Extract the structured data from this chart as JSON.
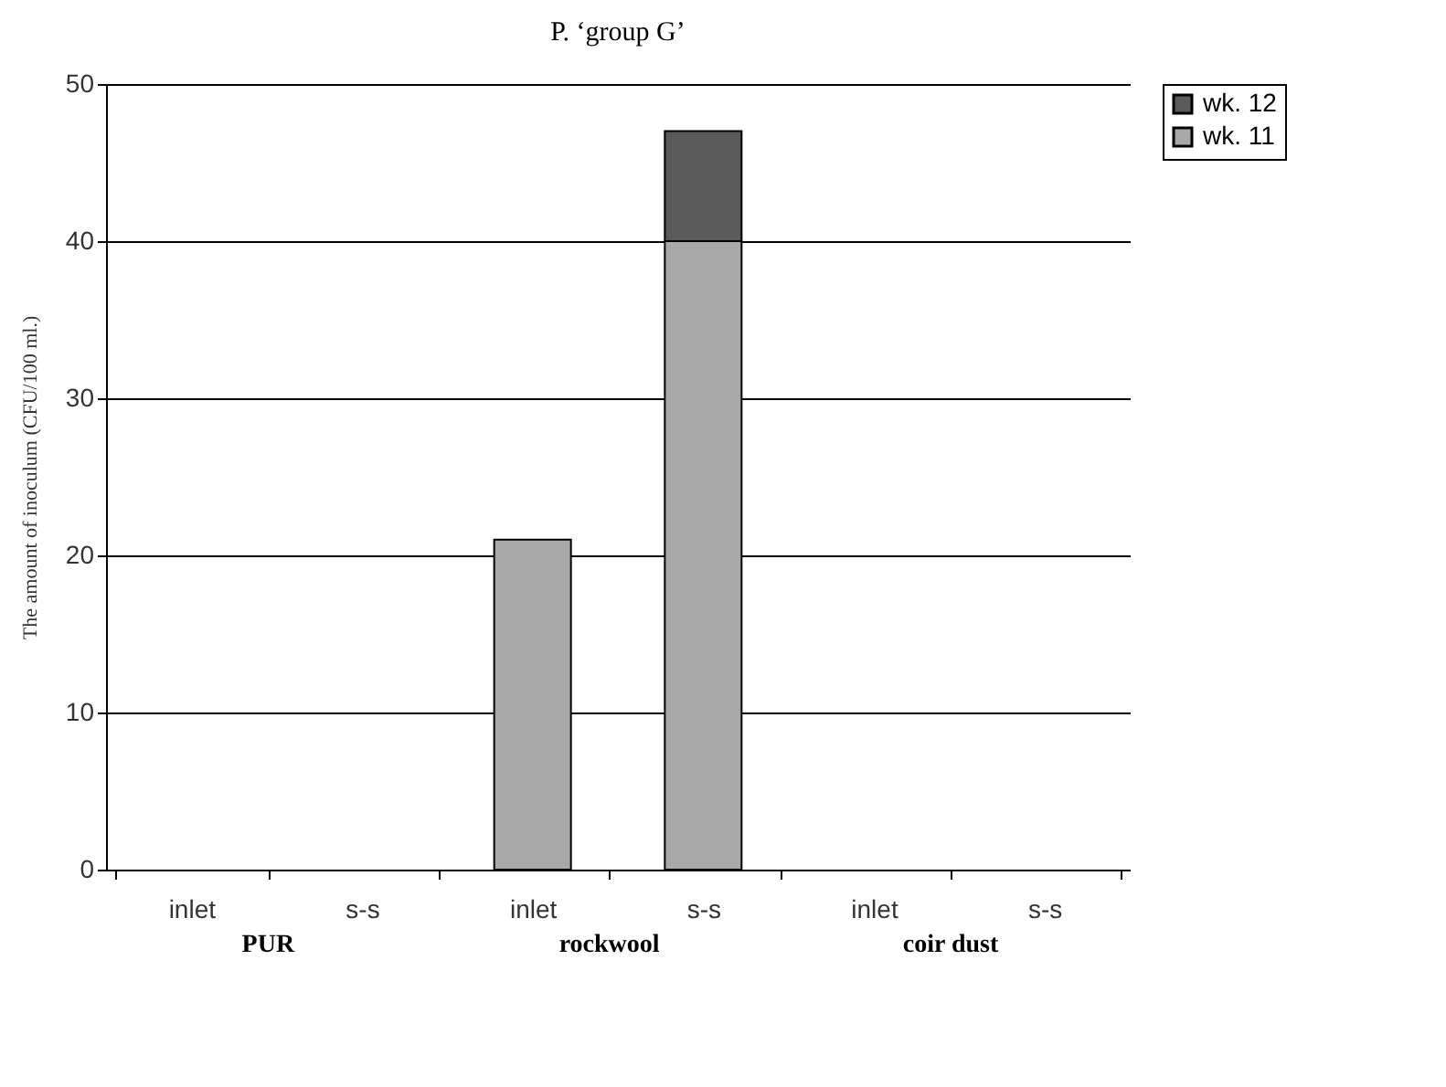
{
  "chart_data": {
    "type": "bar",
    "title": "P. ‘group G’",
    "ylabel": "The amount of inoculum  (CFU/100 ml.)",
    "categories": [
      "inlet",
      "s-s",
      "inlet",
      "s-s",
      "inlet",
      "s-s"
    ],
    "series": [
      {
        "name": "wk. 11",
        "color": "#a8a8a8",
        "values": [
          null,
          null,
          21,
          40,
          null,
          null
        ]
      },
      {
        "name": "wk. 12",
        "color": "#5a5a5a",
        "values": [
          null,
          null,
          null,
          7,
          null,
          null
        ]
      }
    ],
    "stacked": true,
    "ylim": [
      0,
      50
    ],
    "yticks": [
      0,
      10,
      20,
      30,
      40,
      50
    ],
    "grid": "y",
    "legend": "right",
    "annotations": [
      "PUR",
      "rockwool",
      "coir dust"
    ]
  }
}
